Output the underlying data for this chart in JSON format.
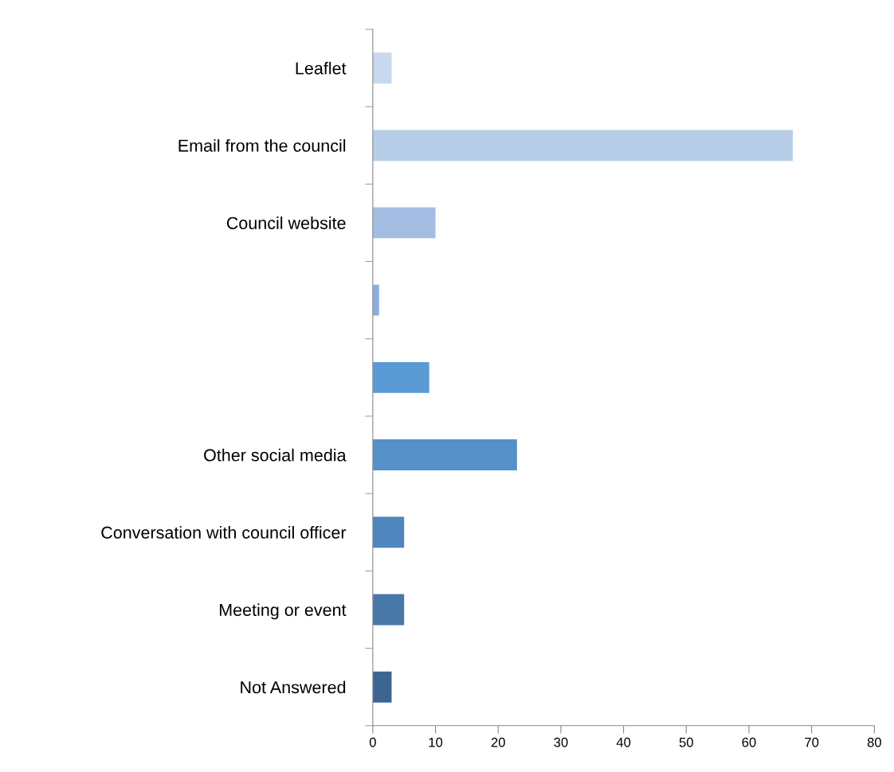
{
  "chart_data": {
    "type": "bar",
    "orientation": "horizontal",
    "categories": [
      "Leaflet",
      "Email from the council",
      "Council website",
      null,
      null,
      "Other social media",
      "Conversation with council officer",
      "Meeting or event",
      "Not Answered"
    ],
    "values": [
      3,
      67,
      10,
      1,
      9,
      23,
      5,
      5,
      3
    ],
    "colors": [
      "#c8d8ee",
      "#b7cde8",
      "#a3bde3",
      "#8caedf",
      "#5b9bd5",
      "#5591c8",
      "#4f86bd",
      "#4878a8",
      "#3d6591"
    ],
    "xlim": [
      0,
      80
    ],
    "xticks": [
      0,
      10,
      20,
      30,
      40,
      50,
      60,
      70,
      80
    ],
    "grid": false,
    "legend": false
  }
}
